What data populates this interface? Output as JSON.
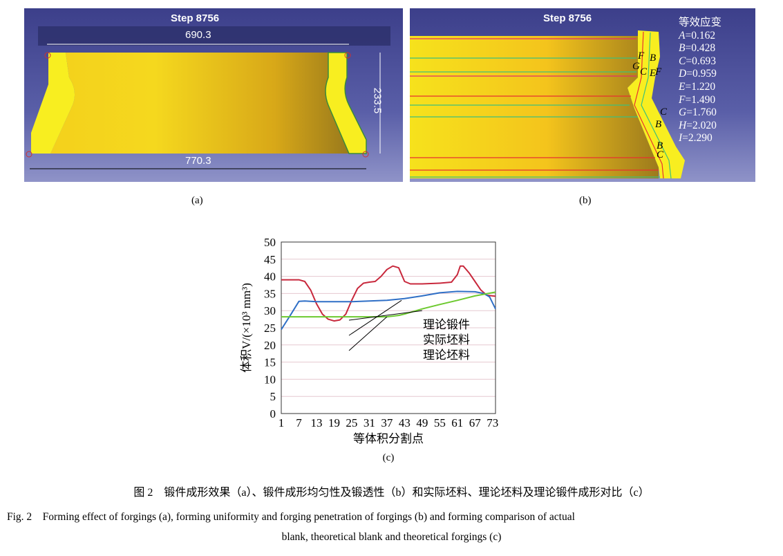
{
  "panel_a": {
    "step": "Step 8756",
    "dim_top": "690.3",
    "dim_height": "233.5",
    "dim_bottom": "770.3",
    "label": "(a)"
  },
  "panel_b": {
    "step": "Step 8756",
    "legend_title": "等效应变",
    "legend": [
      {
        "k": "A",
        "v": "=0.162"
      },
      {
        "k": "B",
        "v": "=0.428"
      },
      {
        "k": "C",
        "v": "=0.693"
      },
      {
        "k": "D",
        "v": "=0.959"
      },
      {
        "k": "E",
        "v": "=1.220"
      },
      {
        "k": "F",
        "v": "=1.490"
      },
      {
        "k": "G",
        "v": "=1.760"
      },
      {
        "k": "H",
        "v": "=2.020"
      },
      {
        "k": "I",
        "v": "=2.290"
      }
    ],
    "contour_labels": [
      "F",
      "B",
      "G",
      "C",
      "E",
      "F",
      "C",
      "B",
      "B",
      "C"
    ],
    "label": "(b)"
  },
  "chart_data": {
    "type": "line",
    "xlabel": "等体积分割点",
    "ylabel": "体积V/(×10³ mm³)",
    "xlim": [
      1,
      74
    ],
    "ylim": [
      0,
      50
    ],
    "xticks": [
      1,
      7,
      13,
      19,
      25,
      31,
      37,
      43,
      49,
      55,
      61,
      67,
      73
    ],
    "yticks": [
      0,
      5,
      10,
      15,
      20,
      25,
      30,
      35,
      40,
      45,
      50
    ],
    "grid": true,
    "label": "(c)",
    "series": [
      {
        "name": "理论锻件",
        "color": "#c8283c",
        "x": [
          1,
          7,
          9,
          11,
          13,
          15,
          17,
          19,
          21,
          23,
          25,
          27,
          29,
          31,
          33,
          35,
          37,
          39,
          41,
          43,
          45,
          49,
          55,
          59,
          61,
          62,
          63,
          65,
          67,
          69,
          71,
          74
        ],
        "y": [
          39,
          39,
          38.5,
          36,
          32,
          29,
          27.5,
          27,
          27.3,
          29,
          33,
          36.5,
          38,
          38.3,
          38.5,
          40,
          42,
          43,
          42.5,
          38.5,
          37.8,
          37.8,
          38,
          38.3,
          40.5,
          43,
          43,
          41,
          38.5,
          36,
          34.5,
          34.2
        ]
      },
      {
        "name": "实际坯料",
        "color": "#2f6fc6",
        "x": [
          1,
          4,
          7,
          9,
          13,
          25,
          31,
          37,
          43,
          49,
          55,
          61,
          67,
          70,
          72,
          74
        ],
        "y": [
          24.5,
          28.5,
          32.7,
          32.8,
          32.6,
          32.6,
          32.8,
          33,
          33.5,
          34.3,
          35.2,
          35.6,
          35.5,
          35,
          34,
          30.5
        ]
      },
      {
        "name": "理论坯料",
        "color": "#6cc92e",
        "x": [
          1,
          37,
          41,
          43,
          49,
          55,
          61,
          67,
          74
        ],
        "y": [
          28.2,
          28.2,
          28.6,
          29,
          30.5,
          31.8,
          33,
          34.3,
          35.4
        ]
      }
    ]
  },
  "caption": {
    "zh": "图 2　锻件成形效果（a）、锻件成形均匀性及锻透性（b）和实际坯料、理论坯料及理论锻件成形对比（c）",
    "en1": "Fig. 2　Forming effect of forgings (a), forming uniformity and forging penetration of forgings (b) and forming comparison of actual",
    "en2": "blank, theoretical blank and theoretical forgings (c)"
  }
}
